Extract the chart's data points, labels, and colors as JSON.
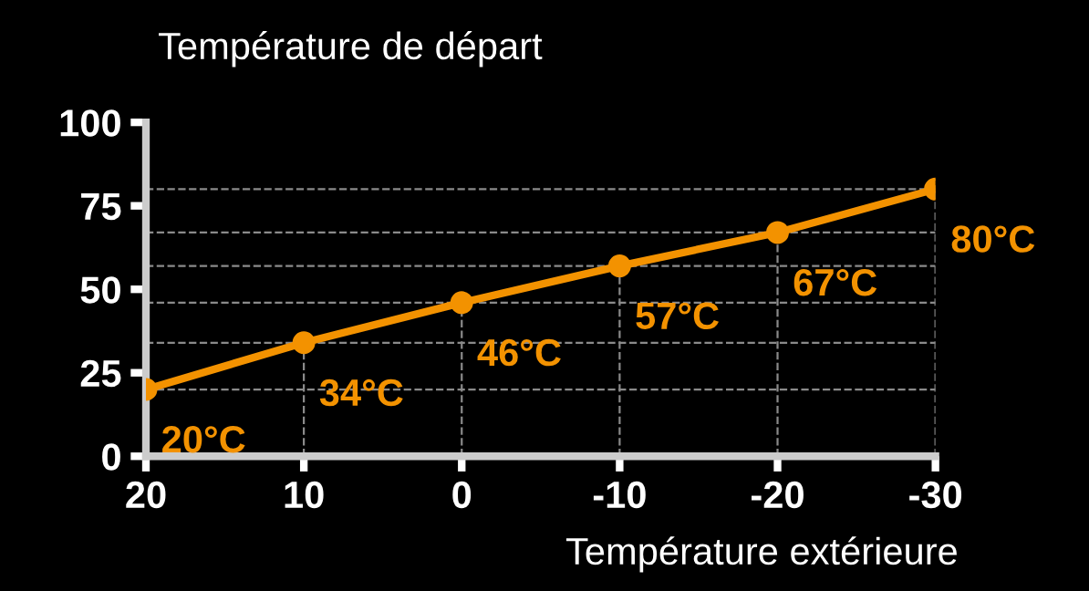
{
  "chart_data": {
    "type": "line",
    "title": "Température de départ",
    "xlabel": "Température extérieure",
    "x": [
      20,
      10,
      0,
      -10,
      -20,
      -30
    ],
    "series": [
      {
        "color": "#f39200",
        "values": [
          20,
          34,
          46,
          57,
          67,
          80
        ],
        "value_labels": [
          "20°C",
          "34°C",
          "46°C",
          "57°C",
          "67°C",
          "80°C"
        ]
      }
    ],
    "xlim": [
      20,
      -30
    ],
    "xticks": [
      20,
      10,
      0,
      -10,
      -20,
      -30
    ],
    "ylim": [
      0,
      100
    ],
    "yticks": [
      0,
      25,
      50,
      75,
      100
    ],
    "ref_lines": [
      {
        "axis": "y",
        "value": 20,
        "color": "#8a8a8a",
        "line_style": "dashed"
      },
      {
        "axis": "y",
        "value": 34,
        "color": "#8a8a8a",
        "line_style": "dashed"
      },
      {
        "axis": "y",
        "value": 46,
        "color": "#8a8a8a",
        "line_style": "dashed"
      },
      {
        "axis": "y",
        "value": 57,
        "color": "#8a8a8a",
        "line_style": "dashed"
      },
      {
        "axis": "y",
        "value": 67,
        "color": "#8a8a8a",
        "line_style": "dashed"
      },
      {
        "axis": "y",
        "value": 80,
        "color": "#8a8a8a",
        "line_style": "dashed"
      },
      {
        "axis": "x",
        "value": 10,
        "color": "#8a8a8a",
        "line_style": "dashed"
      },
      {
        "axis": "x",
        "value": 0,
        "color": "#8a8a8a",
        "line_style": "dashed"
      },
      {
        "axis": "x",
        "value": -10,
        "color": "#8a8a8a",
        "line_style": "dashed"
      },
      {
        "axis": "x",
        "value": -20,
        "color": "#8a8a8a",
        "line_style": "dashed"
      },
      {
        "axis": "x",
        "value": -30,
        "color": "#8a8a8a",
        "line_style": "dashed"
      }
    ],
    "marker": "circle",
    "line_style": "solid",
    "grid": false,
    "legend": false
  }
}
